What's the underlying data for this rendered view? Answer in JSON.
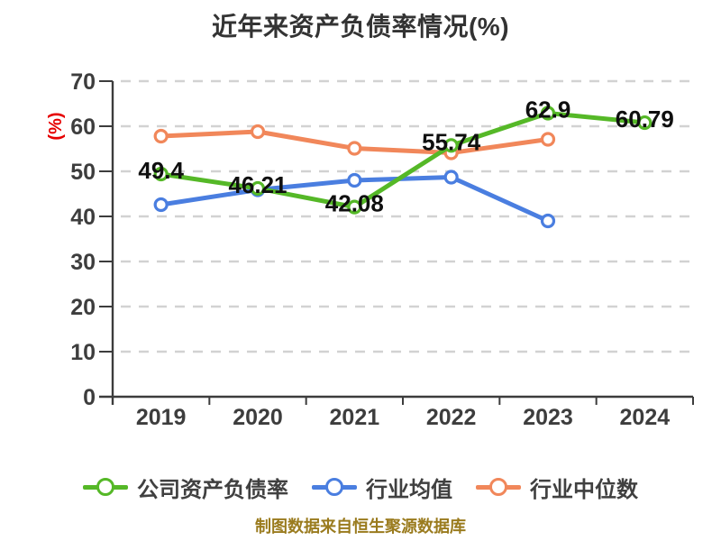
{
  "title": "近年来资产负债率情况(%)",
  "y_axis_name": "(%)",
  "footer_note": "制图数据来自恒生聚源数据库",
  "colors": {
    "title": "#333333",
    "axis": "#3c3c3c",
    "grid": "#d2d2d2",
    "tick_label": "#3d3d3d",
    "data_label": "#0f0f0f",
    "y_axis_name": "#e60000",
    "legend_text": "#404040",
    "footer": "#9a7b1e",
    "series_company": "#55b827",
    "series_industry_avg": "#4a7ee0",
    "series_industry_median": "#f1875a"
  },
  "chart_data": {
    "type": "line",
    "title": "近年来资产负债率情况(%)",
    "categories": [
      "2019",
      "2020",
      "2021",
      "2022",
      "2023",
      "2024"
    ],
    "yticks": [
      0,
      10,
      20,
      30,
      40,
      50,
      60,
      70
    ],
    "ylim": [
      0,
      70
    ],
    "grid": true,
    "grid_style": "dashed",
    "legend_position": "bottom",
    "series": [
      {
        "name": "公司资产负债率",
        "color": "#55b827",
        "values": [
          49.4,
          46.21,
          42.08,
          55.74,
          62.9,
          60.79
        ],
        "point_labels": [
          "49.4",
          "46.21",
          "42.08",
          "55.74",
          "62.9",
          "60.79"
        ]
      },
      {
        "name": "行业均值",
        "color": "#4a7ee0",
        "values": [
          42.6,
          45.9,
          48.0,
          48.7,
          39.0,
          null
        ],
        "point_labels": null
      },
      {
        "name": "行业中位数",
        "color": "#f1875a",
        "values": [
          57.8,
          58.8,
          55.1,
          54.1,
          57.1,
          null
        ],
        "point_labels": null
      }
    ]
  }
}
